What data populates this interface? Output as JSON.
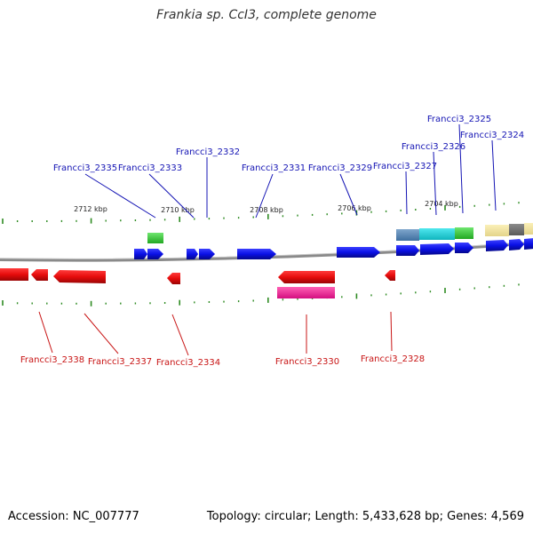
{
  "title": "Frankia sp. CcI3, complete genome",
  "footer": {
    "accession": "Accession: NC_007777",
    "summary": "Topology: circular; Length: 5,433,628 bp; Genes: 4,569"
  },
  "colors": {
    "forward_gene": "#0a10e6",
    "reverse_gene": "#e60c0c",
    "forward_label": "#1414b4",
    "reverse_label": "#c81414",
    "tick": "#2e8b22",
    "backbone": "#8a8a8a"
  },
  "scale_labels": [
    "2712 kbp",
    "2710 kbp",
    "2708 kbp",
    "2706 kbp",
    "2704 kbp"
  ],
  "forward_genes": [
    {
      "label": "Francci3_2335"
    },
    {
      "label": "Francci3_2333"
    },
    {
      "label": "Francci3_2332"
    },
    {
      "label": "Francci3_2331"
    },
    {
      "label": "Francci3_2329"
    },
    {
      "label": "Francci3_2327"
    },
    {
      "label": "Francci3_2326"
    },
    {
      "label": "Francci3_2325"
    },
    {
      "label": "Francci3_2324"
    }
  ],
  "reverse_genes": [
    {
      "label": "Francci3_2338"
    },
    {
      "label": "Francci3_2337"
    },
    {
      "label": "Francci3_2334"
    },
    {
      "label": "Francci3_2330"
    },
    {
      "label": "Francci3_2328"
    }
  ]
}
